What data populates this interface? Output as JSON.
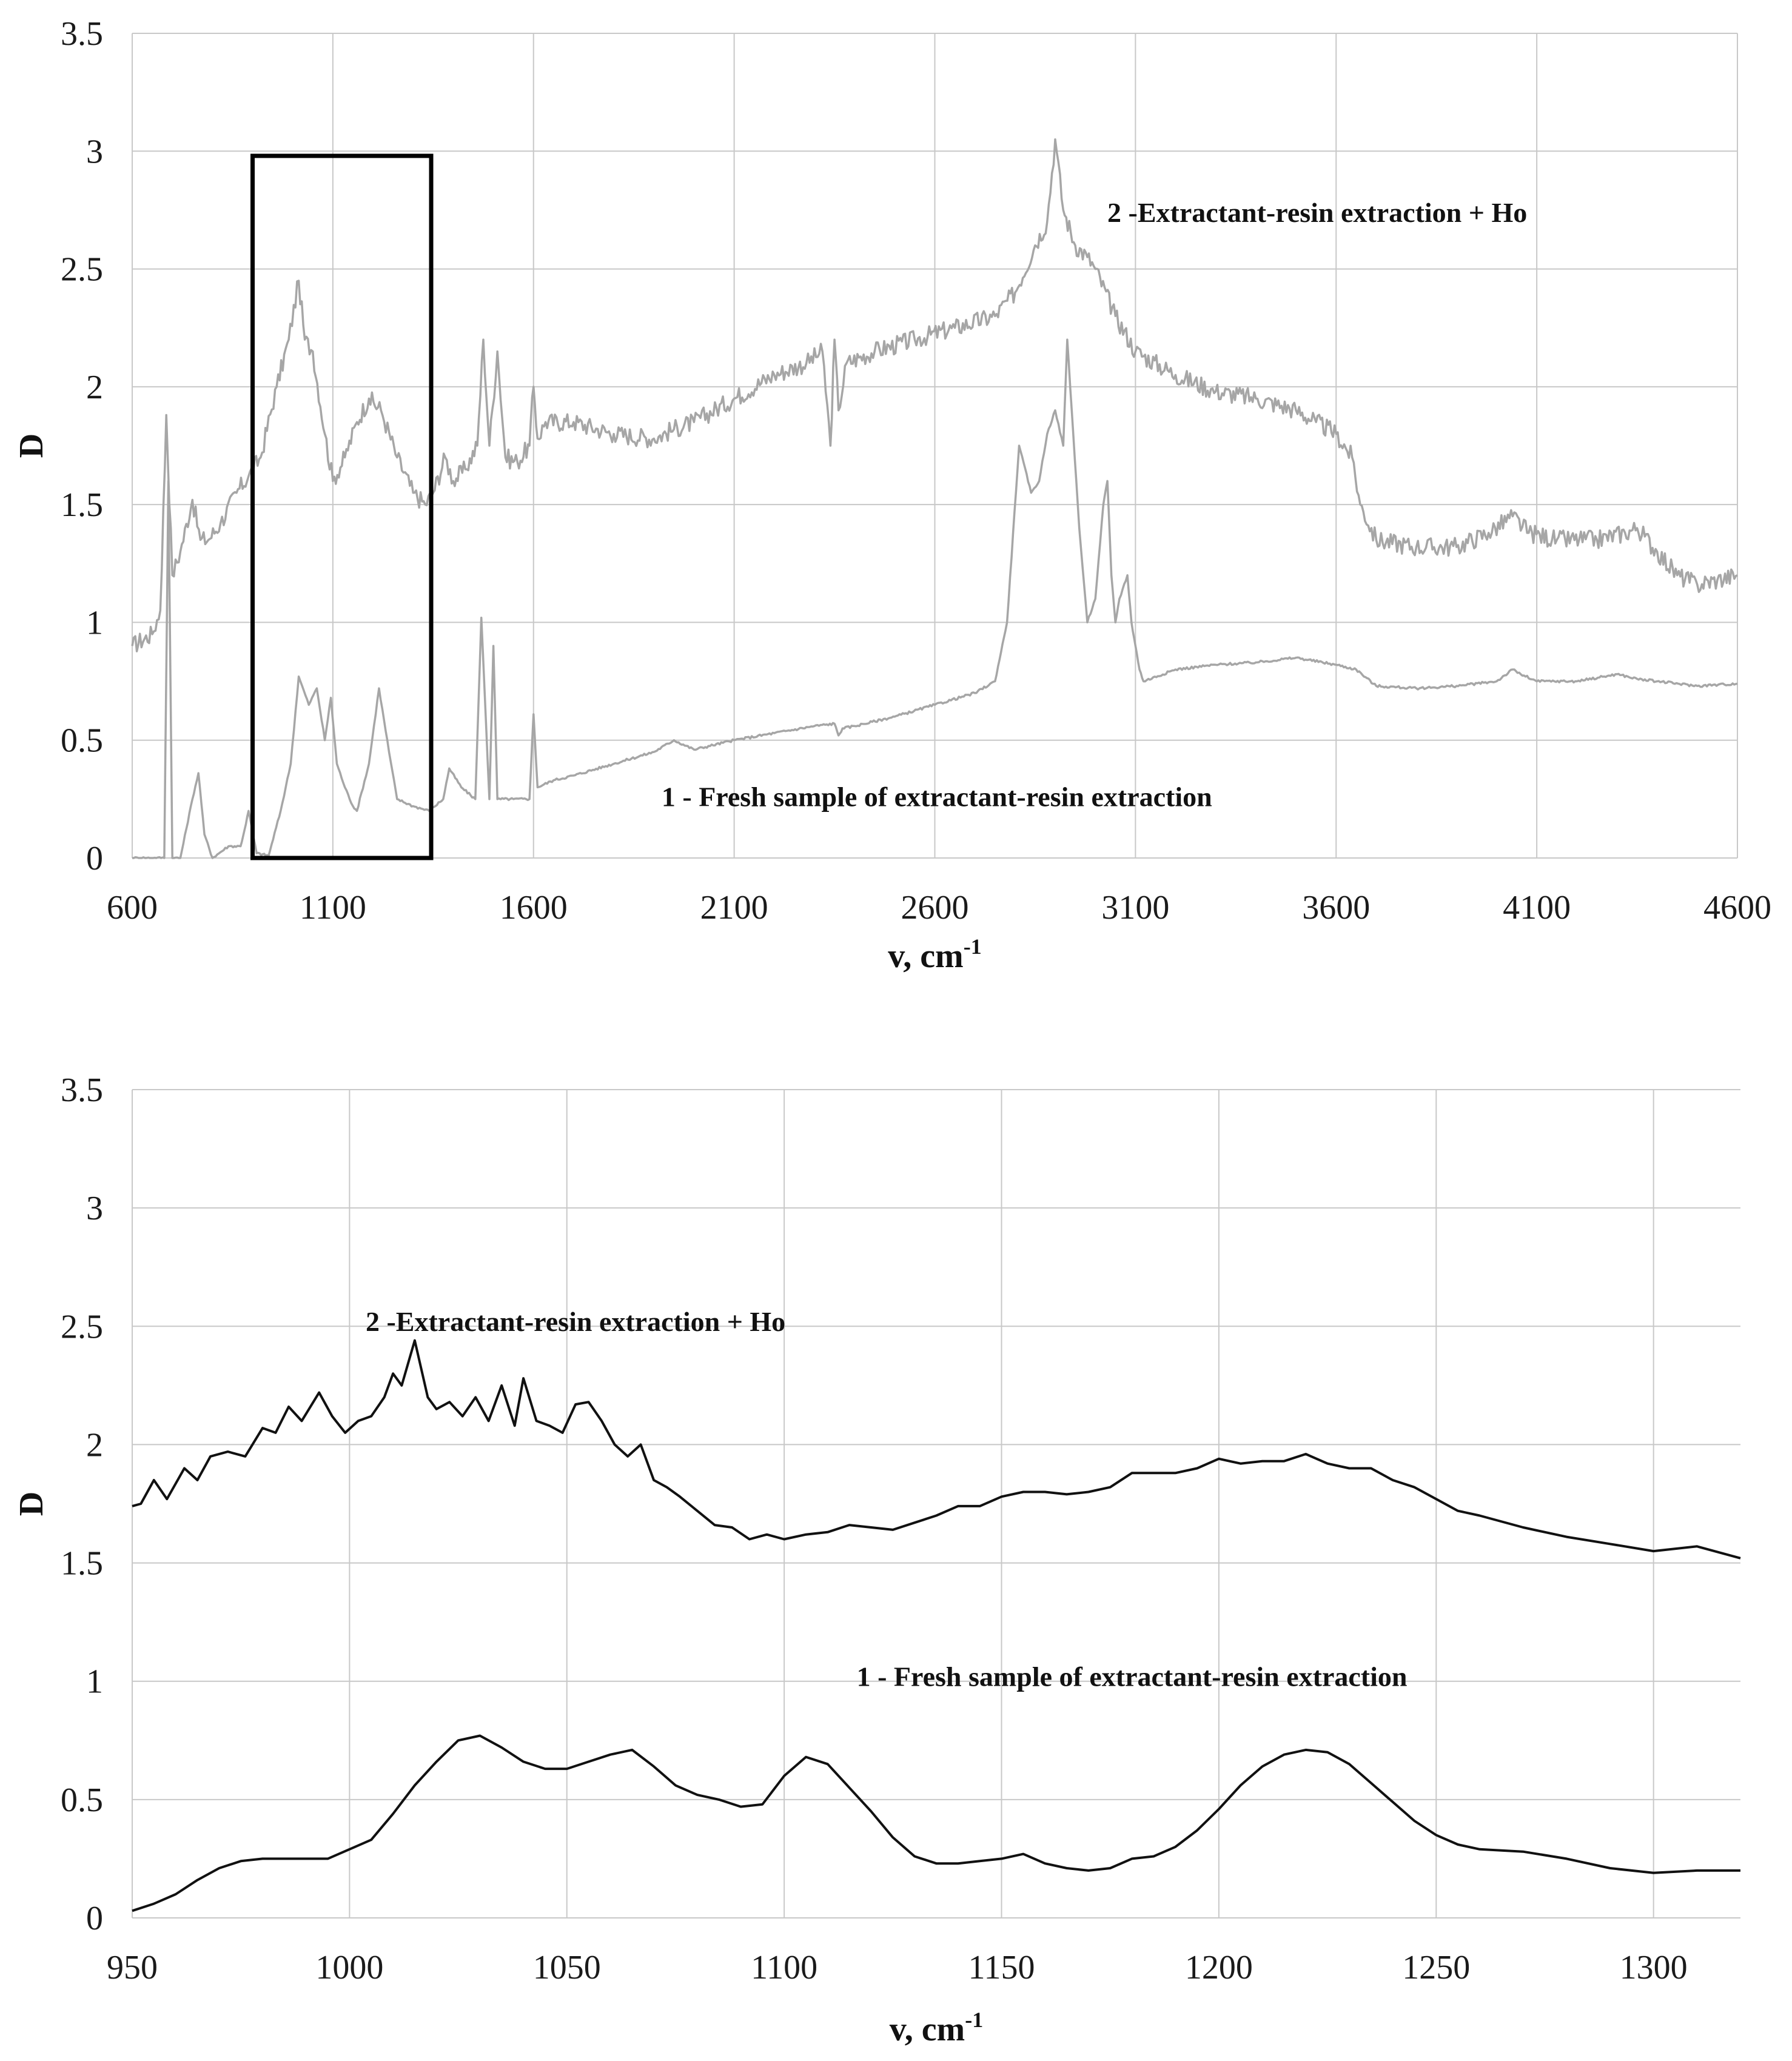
{
  "chart_data": [
    {
      "type": "line",
      "id": "overview",
      "xlabel": "v, cm",
      "xlabel_sup": "-1",
      "ylabel": "D",
      "xlim": [
        600,
        4600
      ],
      "ylim": [
        0,
        3.5
      ],
      "xticks": [
        600,
        1100,
        1600,
        2100,
        2600,
        3100,
        3600,
        4100,
        4600
      ],
      "yticks": [
        "0",
        "0.5",
        "1",
        "1.5",
        "2",
        "2.5",
        "3",
        "3.5"
      ],
      "grid": true,
      "line_color": "#a6a6a6",
      "highlight_box": {
        "x_range": [
          900,
          1345
        ],
        "y_range": [
          0,
          2.98
        ]
      },
      "series": [
        {
          "name": "2 -Extractant-resin extraction + Ho",
          "noise": 0.04,
          "x": [
            600,
            650,
            670,
            685,
            700,
            720,
            750,
            770,
            790,
            820,
            860,
            890,
            920,
            960,
            990,
            1015,
            1030,
            1050,
            1080,
            1100,
            1130,
            1160,
            1190,
            1220,
            1260,
            1300,
            1330,
            1350,
            1380,
            1400,
            1430,
            1460,
            1475,
            1490,
            1510,
            1530,
            1560,
            1590,
            1600,
            1610,
            1630,
            1700,
            1800,
            1900,
            1950,
            2000,
            2100,
            2200,
            2280,
            2320,
            2340,
            2350,
            2360,
            2380,
            2450,
            2550,
            2650,
            2750,
            2800,
            2850,
            2880,
            2900,
            2920,
            2950,
            2980,
            3000,
            3050,
            3100,
            3200,
            3300,
            3400,
            3500,
            3550,
            3600,
            3640,
            3660,
            3700,
            3800,
            3900,
            3980,
            4040,
            4080,
            4150,
            4250,
            4320,
            4350,
            4400,
            4450,
            4500,
            4550,
            4600
          ],
          "y": [
            0.9,
            0.95,
            1.05,
            1.88,
            1.2,
            1.3,
            1.52,
            1.35,
            1.35,
            1.42,
            1.55,
            1.62,
            1.7,
            2.0,
            2.2,
            2.45,
            2.2,
            2.15,
            1.8,
            1.6,
            1.7,
            1.85,
            1.95,
            1.9,
            1.7,
            1.55,
            1.5,
            1.55,
            1.7,
            1.6,
            1.65,
            1.75,
            2.2,
            1.75,
            2.15,
            1.7,
            1.68,
            1.75,
            2.0,
            1.78,
            1.85,
            1.85,
            1.8,
            1.78,
            1.82,
            1.85,
            1.95,
            2.05,
            2.1,
            2.15,
            1.75,
            2.2,
            1.9,
            2.1,
            2.15,
            2.2,
            2.25,
            2.3,
            2.4,
            2.6,
            2.7,
            3.05,
            2.75,
            2.6,
            2.55,
            2.5,
            2.3,
            2.15,
            2.05,
            1.98,
            1.95,
            1.9,
            1.85,
            1.8,
            1.7,
            1.5,
            1.35,
            1.32,
            1.32,
            1.38,
            1.45,
            1.38,
            1.35,
            1.35,
            1.38,
            1.4,
            1.3,
            1.2,
            1.16,
            1.18,
            1.2
          ]
        },
        {
          "name": "1 - Fresh sample of extractant-resin extraction",
          "noise": 0.005,
          "x": [
            600,
            680,
            690,
            700,
            720,
            750,
            765,
            780,
            800,
            840,
            870,
            880,
            890,
            910,
            940,
            970,
            995,
            1015,
            1040,
            1060,
            1080,
            1095,
            1110,
            1130,
            1150,
            1160,
            1190,
            1215,
            1240,
            1260,
            1300,
            1340,
            1375,
            1390,
            1420,
            1455,
            1470,
            1490,
            1500,
            1510,
            1550,
            1590,
            1600,
            1610,
            1650,
            1700,
            1800,
            1900,
            1950,
            2000,
            2100,
            2200,
            2300,
            2350,
            2360,
            2370,
            2400,
            2500,
            2600,
            2700,
            2750,
            2780,
            2810,
            2840,
            2860,
            2880,
            2900,
            2920,
            2930,
            2945,
            2960,
            2980,
            3000,
            3020,
            3030,
            3040,
            3050,
            3060,
            3080,
            3090,
            3100,
            3110,
            3120,
            3200,
            3300,
            3400,
            3500,
            3600,
            3650,
            3700,
            3800,
            3900,
            4000,
            4040,
            4060,
            4100,
            4200,
            4300,
            4350,
            4400,
            4500,
            4600
          ],
          "y": [
            0,
            0,
            1.6,
            0,
            0,
            0.25,
            0.36,
            0.1,
            0,
            0.05,
            0.05,
            0.12,
            0.2,
            0.02,
            0.01,
            0.2,
            0.4,
            0.77,
            0.65,
            0.72,
            0.5,
            0.68,
            0.4,
            0.3,
            0.22,
            0.2,
            0.4,
            0.72,
            0.45,
            0.25,
            0.22,
            0.2,
            0.25,
            0.38,
            0.3,
            0.25,
            1.02,
            0.25,
            0.9,
            0.25,
            0.25,
            0.25,
            0.61,
            0.3,
            0.33,
            0.35,
            0.4,
            0.45,
            0.5,
            0.46,
            0.5,
            0.53,
            0.56,
            0.57,
            0.52,
            0.55,
            0.56,
            0.6,
            0.65,
            0.7,
            0.75,
            1.0,
            1.75,
            1.55,
            1.6,
            1.8,
            1.9,
            1.75,
            2.2,
            1.8,
            1.4,
            1.0,
            1.1,
            1.5,
            1.6,
            1.2,
            1.0,
            1.1,
            1.2,
            1.0,
            0.9,
            0.8,
            0.75,
            0.8,
            0.82,
            0.83,
            0.85,
            0.82,
            0.8,
            0.73,
            0.72,
            0.73,
            0.75,
            0.8,
            0.78,
            0.75,
            0.75,
            0.78,
            0.76,
            0.75,
            0.73,
            0.74
          ]
        }
      ]
    },
    {
      "type": "line",
      "id": "zoom",
      "xlabel": "v, cm",
      "xlabel_sup": "-1",
      "ylabel": "D",
      "xlim": [
        950,
        1320
      ],
      "ylim": [
        0,
        3.5
      ],
      "xticks": [
        950,
        1000,
        1050,
        1100,
        1150,
        1200,
        1250,
        1300
      ],
      "yticks": [
        "0",
        "0.5",
        "1",
        "1.5",
        "2",
        "2.5",
        "3",
        "3.5"
      ],
      "grid": true,
      "line_color": "#111111",
      "series": [
        {
          "name": "2 -Extractant-resin extraction + Ho",
          "x": [
            950,
            952,
            955,
            958,
            962,
            965,
            968,
            972,
            976,
            980,
            983,
            986,
            989,
            993,
            996,
            999,
            1002,
            1005,
            1008,
            1010,
            1012,
            1015,
            1018,
            1020,
            1023,
            1026,
            1029,
            1032,
            1035,
            1038,
            1040,
            1043,
            1046,
            1049,
            1052,
            1055,
            1058,
            1061,
            1064,
            1067,
            1070,
            1073,
            1076,
            1080,
            1084,
            1088,
            1092,
            1096,
            1100,
            1105,
            1110,
            1115,
            1120,
            1125,
            1130,
            1135,
            1140,
            1145,
            1150,
            1155,
            1160,
            1165,
            1170,
            1175,
            1180,
            1185,
            1190,
            1195,
            1200,
            1205,
            1210,
            1215,
            1220,
            1225,
            1230,
            1235,
            1240,
            1245,
            1250,
            1255,
            1260,
            1270,
            1280,
            1290,
            1300,
            1310,
            1320
          ],
          "y": [
            1.74,
            1.75,
            1.85,
            1.77,
            1.9,
            1.85,
            1.95,
            1.97,
            1.95,
            2.07,
            2.05,
            2.16,
            2.1,
            2.22,
            2.12,
            2.05,
            2.1,
            2.12,
            2.2,
            2.3,
            2.25,
            2.44,
            2.2,
            2.15,
            2.18,
            2.12,
            2.2,
            2.1,
            2.25,
            2.08,
            2.28,
            2.1,
            2.08,
            2.05,
            2.17,
            2.18,
            2.1,
            2.0,
            1.95,
            2.0,
            1.85,
            1.82,
            1.78,
            1.72,
            1.66,
            1.65,
            1.6,
            1.62,
            1.6,
            1.62,
            1.63,
            1.66,
            1.65,
            1.64,
            1.67,
            1.7,
            1.74,
            1.74,
            1.78,
            1.8,
            1.8,
            1.79,
            1.8,
            1.82,
            1.88,
            1.88,
            1.88,
            1.9,
            1.94,
            1.92,
            1.93,
            1.93,
            1.96,
            1.92,
            1.9,
            1.9,
            1.85,
            1.82,
            1.77,
            1.72,
            1.7,
            1.65,
            1.61,
            1.58,
            1.55,
            1.57,
            1.52
          ]
        },
        {
          "name": "1 - Fresh sample of extractant-resin extraction",
          "x": [
            950,
            955,
            960,
            965,
            970,
            975,
            980,
            985,
            990,
            995,
            1000,
            1005,
            1010,
            1015,
            1020,
            1025,
            1030,
            1035,
            1040,
            1045,
            1050,
            1055,
            1060,
            1065,
            1070,
            1075,
            1080,
            1085,
            1090,
            1095,
            1100,
            1105,
            1110,
            1115,
            1120,
            1125,
            1130,
            1135,
            1140,
            1145,
            1150,
            1155,
            1160,
            1165,
            1170,
            1175,
            1180,
            1185,
            1190,
            1195,
            1200,
            1205,
            1210,
            1215,
            1220,
            1225,
            1230,
            1235,
            1240,
            1245,
            1250,
            1255,
            1260,
            1270,
            1280,
            1290,
            1300,
            1310,
            1320
          ],
          "y": [
            0.03,
            0.06,
            0.1,
            0.16,
            0.21,
            0.24,
            0.25,
            0.25,
            0.25,
            0.25,
            0.29,
            0.33,
            0.44,
            0.56,
            0.66,
            0.75,
            0.77,
            0.72,
            0.66,
            0.63,
            0.63,
            0.66,
            0.69,
            0.71,
            0.64,
            0.56,
            0.52,
            0.5,
            0.47,
            0.48,
            0.6,
            0.68,
            0.65,
            0.55,
            0.45,
            0.34,
            0.26,
            0.23,
            0.23,
            0.24,
            0.25,
            0.27,
            0.23,
            0.21,
            0.2,
            0.21,
            0.25,
            0.26,
            0.3,
            0.37,
            0.46,
            0.56,
            0.64,
            0.69,
            0.71,
            0.7,
            0.65,
            0.57,
            0.49,
            0.41,
            0.35,
            0.31,
            0.29,
            0.28,
            0.25,
            0.21,
            0.19,
            0.2,
            0.2
          ]
        }
      ]
    }
  ]
}
